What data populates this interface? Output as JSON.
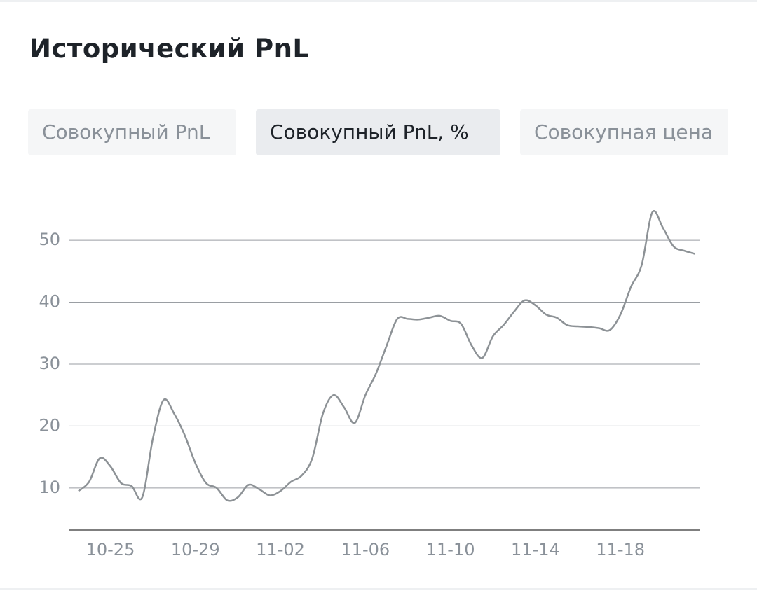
{
  "header": {
    "title": "Исторический PnL"
  },
  "tabs": [
    {
      "label": "Совокупный PnL"
    },
    {
      "label": "Совокупный PnL, %"
    },
    {
      "label": "Совокупная цена"
    }
  ],
  "chart_data": {
    "type": "line",
    "categories": [
      null,
      null,
      null,
      "10-25",
      null,
      null,
      null,
      null,
      null,
      null,
      null,
      "10-29",
      null,
      null,
      null,
      null,
      null,
      null,
      null,
      "11-02",
      null,
      null,
      null,
      null,
      null,
      null,
      null,
      "11-06",
      null,
      null,
      null,
      null,
      null,
      null,
      null,
      "11-10",
      null,
      null,
      null,
      null,
      null,
      null,
      null,
      "11-14",
      null,
      null,
      null,
      null,
      null,
      null,
      null,
      "11-18",
      null,
      null,
      null,
      null,
      null,
      null,
      null
    ],
    "series": [
      {
        "color": "#8d9296",
        "values": [
          9.5,
          11,
          14.8,
          13.5,
          10.8,
          10.3,
          8.5,
          18,
          24.2,
          22,
          18.5,
          14,
          10.8,
          10,
          8,
          8.5,
          10.5,
          9.8,
          8.8,
          9.5,
          11,
          12,
          14.8,
          22,
          25,
          23,
          20.5,
          25,
          28.5,
          33,
          37.3,
          37.3,
          37.2,
          37.5,
          37.8,
          37,
          36.5,
          33,
          31,
          34.5,
          36.3,
          38.5,
          40.3,
          39.5,
          38,
          37.5,
          36.3,
          36.1,
          36,
          35.8,
          35.5,
          38,
          42.5,
          46,
          54.5,
          52,
          49,
          48.3,
          47.8
        ]
      }
    ],
    "ylim": [
      3.2,
      56
    ],
    "yticks": [
      10,
      20,
      30,
      40,
      50
    ],
    "grid": true
  }
}
